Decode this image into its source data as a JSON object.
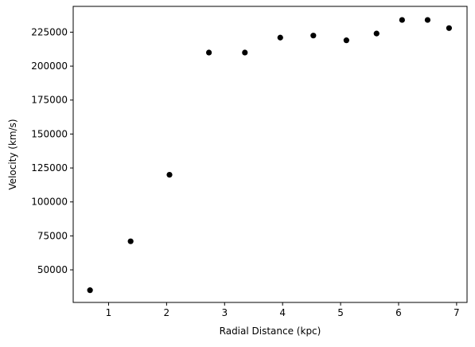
{
  "chart_data": {
    "type": "scatter",
    "title": "",
    "xlabel": "Radial Distance (kpc)",
    "ylabel": "Velocity (km/s)",
    "xlim": [
      0.39,
      7.18
    ],
    "ylim": [
      26000,
      244000
    ],
    "xticks": [
      1,
      2,
      3,
      4,
      5,
      6,
      7
    ],
    "yticks": [
      50000,
      75000,
      100000,
      125000,
      150000,
      175000,
      200000,
      225000
    ],
    "grid": false,
    "legend": "none",
    "marker_color": "#000000",
    "points": [
      {
        "x": 0.68,
        "y": 35000
      },
      {
        "x": 1.38,
        "y": 71000
      },
      {
        "x": 2.05,
        "y": 120000
      },
      {
        "x": 2.73,
        "y": 210000
      },
      {
        "x": 3.35,
        "y": 210000
      },
      {
        "x": 3.96,
        "y": 221000
      },
      {
        "x": 4.53,
        "y": 222500
      },
      {
        "x": 5.1,
        "y": 219000
      },
      {
        "x": 5.62,
        "y": 224000
      },
      {
        "x": 6.06,
        "y": 234000
      },
      {
        "x": 6.5,
        "y": 234000
      },
      {
        "x": 6.87,
        "y": 228000
      }
    ]
  }
}
